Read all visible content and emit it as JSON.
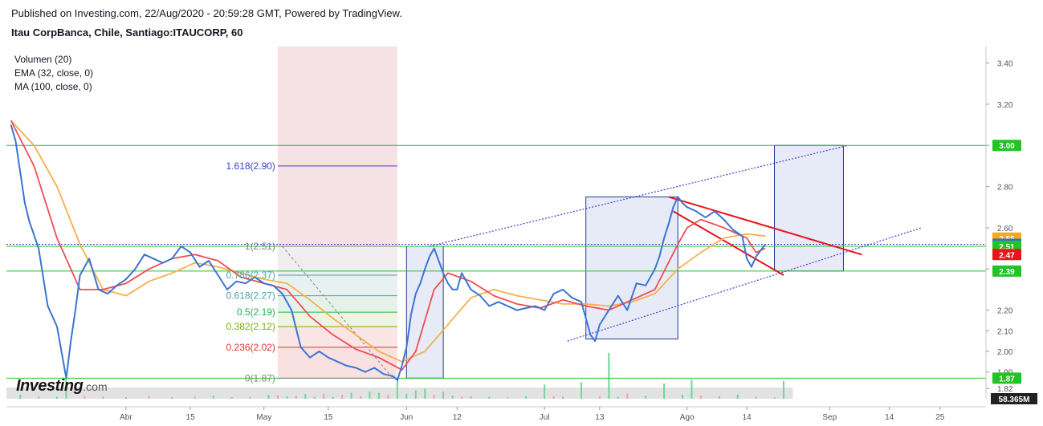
{
  "header": {
    "publisher_line": "Published on Investing.com, 22/Aug/2020 - 20:59:28 GMT, Powered by TradingView.",
    "symbol_line": "Itau CorpBanca, Chile, Santiago:ITAUCORP, 60"
  },
  "legend": {
    "items": [
      "Volumen (20)",
      "EMA (32, close, 0)",
      "MA (100, close, 0)"
    ]
  },
  "logo": {
    "brand": "Investing",
    "domain": ".com"
  },
  "colors": {
    "price": "#3b74d2",
    "ema": "#ef4d52",
    "ma": "#f6b04a",
    "support_line": "#22c322",
    "trend_red": "#e8141c",
    "channel": "#3a3fd0",
    "box_fill": "#dfe4f4",
    "box_border": "#1f3a8f",
    "vol_up": "#6fd69a",
    "vol_down": "#f2a29e",
    "fib_low_zone": "#f8dcdc",
    "fib_top_zone": "#e6e8f6"
  },
  "chart_data": {
    "type": "line",
    "title": "Itau CorpBanca, Chile, Santiago:ITAUCORP, 60",
    "ylim": [
      1.77,
      3.48
    ],
    "y_ticks": [
      3.4,
      3.2,
      3.0,
      2.8,
      2.6,
      2.4,
      2.2,
      2.1,
      2.0,
      1.9,
      1.82
    ],
    "y_tick_labels": [
      "3.40",
      "3.20",
      "3.00",
      "2.80",
      "2.60",
      "2.40",
      "2.20",
      "2.10",
      "2.00",
      "1.90",
      "1.82"
    ],
    "x_ticks": [
      {
        "label": "Abr",
        "t": 25
      },
      {
        "label": "15",
        "t": 39
      },
      {
        "label": "May",
        "t": 55
      },
      {
        "label": "15",
        "t": 69
      },
      {
        "label": "Jun",
        "t": 86
      },
      {
        "label": "12",
        "t": 97
      },
      {
        "label": "Jul",
        "t": 116
      },
      {
        "label": "13",
        "t": 128
      },
      {
        "label": "Ago",
        "t": 147
      },
      {
        "label": "14",
        "t": 160
      },
      {
        "label": "Sep",
        "t": 178
      },
      {
        "label": "14",
        "t": 191
      },
      {
        "label": "25",
        "t": 202
      }
    ],
    "price_series": {
      "name": "Price",
      "t": [
        0,
        1,
        2,
        3,
        4,
        6,
        8,
        10,
        12,
        13,
        14,
        15,
        17,
        19,
        21,
        23,
        25,
        27,
        29,
        31,
        33,
        35,
        37,
        39,
        41,
        43,
        45,
        47,
        49,
        51,
        53,
        55,
        57,
        59,
        61,
        63,
        65,
        67,
        69,
        71,
        73,
        75,
        77,
        79,
        81,
        83,
        84,
        85,
        86,
        87,
        88,
        89,
        90,
        91,
        92,
        93,
        94,
        95,
        96,
        97,
        98,
        100,
        102,
        104,
        106,
        108,
        110,
        112,
        114,
        116,
        118,
        120,
        122,
        124,
        125,
        126,
        127,
        128,
        130,
        132,
        134,
        136,
        138,
        140,
        141,
        142,
        143,
        144,
        145,
        146,
        147,
        149,
        151,
        153,
        155,
        157,
        159,
        160,
        161,
        162,
        163,
        164
      ],
      "values": [
        3.1,
        3.02,
        2.87,
        2.72,
        2.63,
        2.5,
        2.22,
        2.12,
        1.87,
        2.05,
        2.2,
        2.37,
        2.45,
        2.3,
        2.28,
        2.32,
        2.35,
        2.4,
        2.47,
        2.45,
        2.43,
        2.45,
        2.51,
        2.48,
        2.41,
        2.44,
        2.37,
        2.3,
        2.34,
        2.33,
        2.36,
        2.33,
        2.32,
        2.28,
        2.2,
        2.02,
        1.97,
        2.0,
        1.97,
        1.95,
        1.93,
        1.92,
        1.9,
        1.92,
        1.89,
        1.88,
        1.86,
        1.93,
        2.02,
        2.18,
        2.28,
        2.33,
        2.4,
        2.46,
        2.5,
        2.44,
        2.38,
        2.33,
        2.3,
        2.3,
        2.38,
        2.3,
        2.27,
        2.22,
        2.24,
        2.22,
        2.2,
        2.21,
        2.22,
        2.2,
        2.28,
        2.3,
        2.26,
        2.24,
        2.16,
        2.08,
        2.05,
        2.13,
        2.2,
        2.27,
        2.2,
        2.33,
        2.32,
        2.4,
        2.46,
        2.55,
        2.62,
        2.7,
        2.75,
        2.72,
        2.7,
        2.68,
        2.65,
        2.68,
        2.64,
        2.59,
        2.56,
        2.45,
        2.41,
        2.46,
        2.49,
        2.52
      ]
    },
    "ema_series": {
      "name": "EMA (32, close, 0)",
      "t": [
        0,
        5,
        10,
        15,
        20,
        25,
        30,
        35,
        40,
        45,
        50,
        55,
        60,
        65,
        70,
        75,
        80,
        85,
        88,
        90,
        92,
        95,
        100,
        105,
        110,
        115,
        120,
        125,
        130,
        135,
        140,
        145,
        147,
        150,
        155,
        160,
        162,
        164
      ],
      "values": [
        3.12,
        2.9,
        2.55,
        2.3,
        2.3,
        2.33,
        2.4,
        2.45,
        2.47,
        2.44,
        2.36,
        2.33,
        2.3,
        2.17,
        2.08,
        2.01,
        1.97,
        1.91,
        2.0,
        2.15,
        2.3,
        2.38,
        2.34,
        2.27,
        2.23,
        2.21,
        2.25,
        2.22,
        2.2,
        2.25,
        2.3,
        2.52,
        2.6,
        2.64,
        2.6,
        2.55,
        2.48,
        2.5
      ]
    },
    "ma_series": {
      "name": "MA (100, close, 0)",
      "t": [
        0,
        5,
        10,
        15,
        20,
        25,
        30,
        35,
        40,
        45,
        50,
        55,
        60,
        65,
        70,
        75,
        80,
        85,
        90,
        95,
        100,
        105,
        110,
        115,
        120,
        125,
        130,
        135,
        140,
        145,
        150,
        155,
        160,
        164
      ],
      "values": [
        3.12,
        3.0,
        2.8,
        2.52,
        2.3,
        2.27,
        2.34,
        2.38,
        2.43,
        2.41,
        2.38,
        2.35,
        2.33,
        2.25,
        2.16,
        2.08,
        2.0,
        1.95,
        2.0,
        2.13,
        2.26,
        2.3,
        2.27,
        2.25,
        2.23,
        2.23,
        2.22,
        2.24,
        2.28,
        2.4,
        2.48,
        2.55,
        2.57,
        2.56
      ]
    },
    "horizontal_levels": [
      3.0,
      2.52,
      2.51,
      2.39,
      1.87
    ],
    "fibonacci": {
      "t_start": 58,
      "t_end": 84,
      "levels": [
        {
          "label": "1.618(2.90)",
          "value": 2.9,
          "color": "#3a3fd0"
        },
        {
          "label": "1(2.51)",
          "value": 2.51,
          "color": "#808080"
        },
        {
          "label": "0.786(2.37)",
          "value": 2.37,
          "color": "#4aa3a6"
        },
        {
          "label": "0.618(2.27)",
          "value": 2.27,
          "color": "#4aa3a6"
        },
        {
          "label": "0.5(2.19)",
          "value": 2.19,
          "color": "#22b24c"
        },
        {
          "label": "0.382(2.12)",
          "value": 2.12,
          "color": "#7bb000"
        },
        {
          "label": "0.236(2.02)",
          "value": 2.02,
          "color": "#e0302b"
        },
        {
          "label": "0(1.87)",
          "value": 1.87,
          "color": "#808080"
        }
      ]
    },
    "boxes": [
      {
        "t_start": 86,
        "t_end": 94,
        "top": 2.51,
        "bottom": 1.87
      },
      {
        "t_start": 125,
        "t_end": 145,
        "top": 2.75,
        "bottom": 2.06
      },
      {
        "t_start": 166,
        "t_end": 181,
        "top": 3.0,
        "bottom": 2.39
      }
    ],
    "channel_lines": [
      {
        "t1": 91,
        "v1": 2.51,
        "t2": 182,
        "v2": 3.0
      },
      {
        "t1": 121,
        "v1": 2.05,
        "t2": 198,
        "v2": 2.6
      }
    ],
    "red_lines": [
      {
        "t1": 143,
        "v1": 2.75,
        "t2": 185,
        "v2": 2.47
      },
      {
        "t1": 144,
        "v1": 2.68,
        "t2": 168,
        "v2": 2.37
      }
    ],
    "price_labels": [
      {
        "label": "3.00",
        "value": 3.0,
        "color": "#22c322"
      },
      {
        "label": "2.55",
        "value": 2.55,
        "color": "#f6a91b"
      },
      {
        "label": "2.52",
        "value": 2.52,
        "color": "#2f6fd0"
      },
      {
        "label": "2.51",
        "value": 2.51,
        "color": "#22c322"
      },
      {
        "label": "2.47",
        "value": 2.47,
        "color": "#e8141c"
      },
      {
        "label": "2.39",
        "value": 2.39,
        "color": "#22c322"
      },
      {
        "label": "1.87",
        "value": 1.87,
        "color": "#22c322"
      }
    ],
    "volume_label": "58.365M",
    "volume": {
      "t": [
        2,
        6,
        10,
        12,
        16,
        20,
        25,
        30,
        35,
        40,
        44,
        48,
        52,
        56,
        58,
        60,
        62,
        64,
        66,
        68,
        70,
        72,
        74,
        76,
        78,
        80,
        82,
        84,
        86,
        88,
        90,
        92,
        94,
        96,
        98,
        100,
        104,
        108,
        112,
        116,
        118,
        120,
        124,
        128,
        130,
        132,
        134,
        138,
        142,
        146,
        148,
        150,
        154,
        158,
        162,
        166,
        168
      ],
      "values": [
        8,
        5,
        4,
        48,
        6,
        4,
        3,
        5,
        3,
        4,
        6,
        3,
        4,
        8,
        7,
        5,
        6,
        9,
        4,
        10,
        4,
        8,
        12,
        5,
        14,
        12,
        8,
        40,
        10,
        16,
        20,
        8,
        14,
        6,
        4,
        5,
        4,
        3,
        5,
        28,
        5,
        4,
        32,
        5,
        90,
        4,
        10,
        6,
        30,
        8,
        38,
        6,
        5,
        8,
        4,
        3,
        35
      ],
      "up": [
        true,
        false,
        true,
        true,
        false,
        true,
        true,
        false,
        true,
        false,
        true,
        true,
        false,
        true,
        false,
        true,
        false,
        true,
        true,
        false,
        true,
        false,
        true,
        false,
        true,
        true,
        false,
        true,
        true,
        true,
        true,
        false,
        true,
        true,
        false,
        true,
        true,
        false,
        true,
        true,
        false,
        true,
        true,
        false,
        true,
        true,
        false,
        true,
        true,
        true,
        true,
        false,
        true,
        true,
        false,
        true,
        true
      ]
    }
  }
}
